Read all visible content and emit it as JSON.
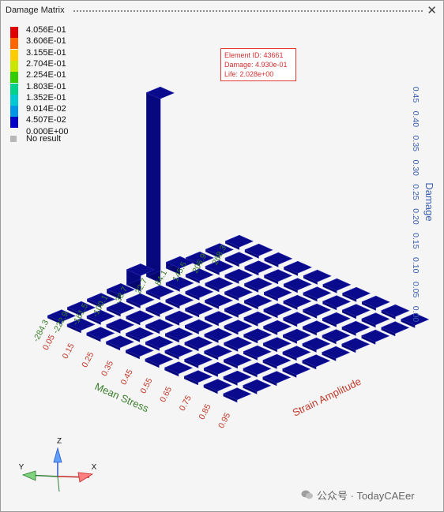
{
  "window": {
    "title": "Damage Matrix",
    "close_glyph": "✕"
  },
  "legend": {
    "entries": [
      {
        "label": "4.056E-01",
        "color": "#e00000"
      },
      {
        "label": "3.606E-01",
        "color": "#ff6600"
      },
      {
        "label": "3.155E-01",
        "color": "#ffcc00"
      },
      {
        "label": "2.704E-01",
        "color": "#c8e600"
      },
      {
        "label": "2.254E-01",
        "color": "#33cc00"
      },
      {
        "label": "1.803E-01",
        "color": "#00d28c"
      },
      {
        "label": "1.352E-01",
        "color": "#00c8d2"
      },
      {
        "label": "9.014E-02",
        "color": "#0096e6"
      },
      {
        "label": "4.507E-02",
        "color": "#0000c8"
      },
      {
        "label": "0.000E+00",
        "color": null
      }
    ],
    "no_result_label": "No result"
  },
  "tooltip": {
    "lines": [
      "Element ID: 43661",
      "Damage: 4.930e-01",
      "Life: 2.028e+00"
    ]
  },
  "chart_data": {
    "type": "bar3d",
    "bar_color": "#0a0a8c",
    "x_axis": {
      "label": "Strain Amplitude",
      "ticks": [
        "0.05",
        "0.15",
        "0.25",
        "0.35",
        "0.45",
        "0.55",
        "0.65",
        "0.75",
        "0.85",
        "0.95"
      ],
      "color": "#c0392b"
    },
    "y_axis": {
      "label": "Mean Stress",
      "ticks": [
        "268.3",
        "206.9",
        "145.5",
        "84.1",
        "22.7",
        "-38.7",
        "-100.1",
        "-161.5",
        "-222.9",
        "-284.3"
      ],
      "color": "#3a7d2c"
    },
    "z_axis": {
      "label": "Damage",
      "ticks": [
        "0.00",
        "0.05",
        "0.10",
        "0.15",
        "0.20",
        "0.25",
        "0.30",
        "0.35",
        "0.40",
        "0.45"
      ],
      "range": [
        0,
        0.45
      ],
      "color": "#3b5fb0"
    },
    "bars": [
      {
        "strain": "0.05",
        "stress": "22.7",
        "damage": 0.493
      },
      {
        "strain": "0.05",
        "stress": "-38.7",
        "damage": 0.035
      },
      {
        "strain": "0.05",
        "stress": "84.1",
        "damage": 0.01
      },
      {
        "strain": "0.05",
        "stress": "-100.1",
        "damage": 0.004
      }
    ]
  },
  "triad": {
    "z": "Z",
    "y": "Y",
    "x": "X"
  },
  "watermark": "公众号 · TodayCAEer"
}
